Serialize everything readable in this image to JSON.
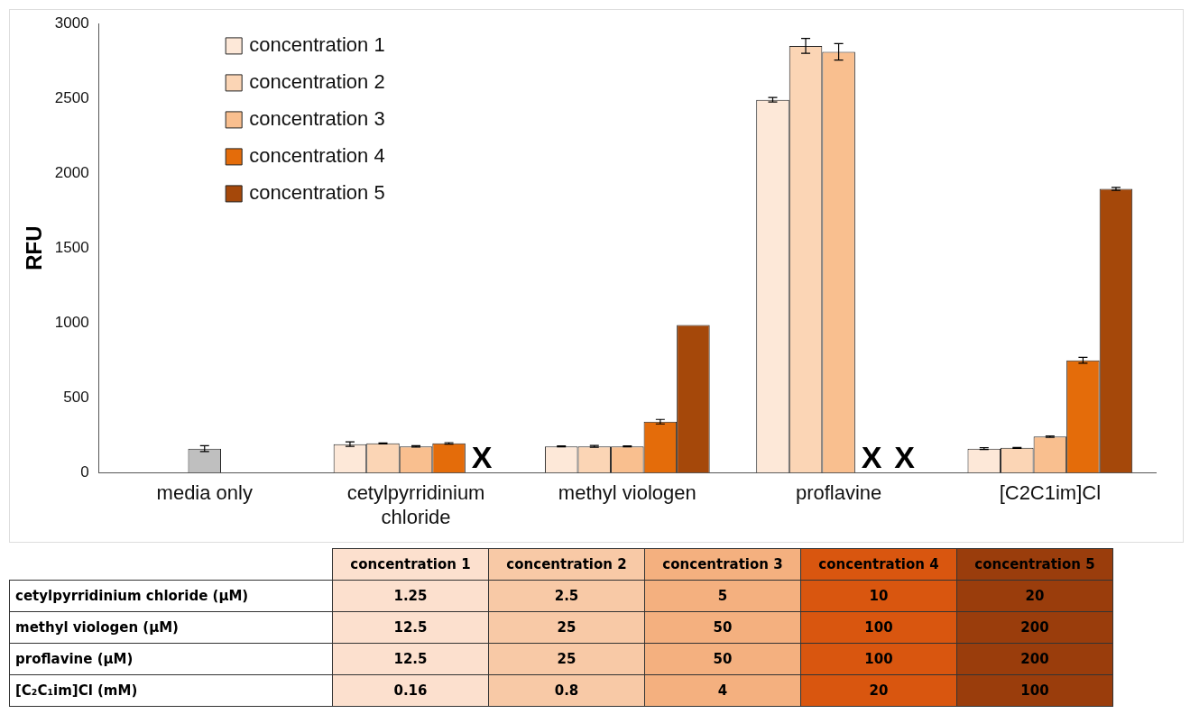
{
  "chart_data": [
    {
      "type": "bar",
      "ylabel": "RFU",
      "categories": [
        "media only",
        "cetylpyrridinium chloride",
        "methyl viologen",
        "proflavine",
        "[C2C1im]Cl"
      ],
      "series": [
        {
          "name": "concentration 1",
          "color": "#fde8d8",
          "values": [
            null,
            190,
            175,
            2490,
            160
          ],
          "errors": [
            null,
            15,
            3,
            15,
            6
          ]
        },
        {
          "name": "concentration 2",
          "color": "#fbd5b5",
          "values": [
            null,
            195,
            175,
            2850,
            165
          ],
          "errors": [
            null,
            3,
            6,
            50,
            3
          ]
        },
        {
          "name": "concentration 3",
          "color": "#f9bf8f",
          "colors": [
            "#bfbfbf",
            "#f9bf8f",
            "#f9bf8f",
            "#f9bf8f",
            "#f9bf8f"
          ],
          "values": [
            160,
            175,
            175,
            2810,
            240
          ],
          "errors": [
            20,
            5,
            3,
            55,
            5
          ]
        },
        {
          "name": "concentration 4",
          "color": "#e46c0a",
          "values": [
            null,
            195,
            340,
            null,
            750
          ],
          "errors": [
            null,
            5,
            15,
            null,
            20
          ],
          "value_labels": [
            null,
            null,
            null,
            "X",
            null
          ]
        },
        {
          "name": "concentration 5",
          "color": "#a5480a",
          "values": [
            null,
            null,
            985,
            null,
            1895
          ],
          "errors": [
            null,
            null,
            null,
            null,
            10
          ],
          "value_labels": [
            null,
            "X",
            null,
            "X",
            null
          ]
        }
      ],
      "ylim": [
        0,
        3000
      ],
      "yticks": [
        0,
        500,
        1000,
        1500,
        2000,
        2500,
        3000
      ],
      "grid": false,
      "legend": "top left"
    },
    {
      "type": "other",
      "categories": [
        "concentration 1",
        "concentration 2",
        "concentration 3",
        "concentration 4",
        "concentration 5"
      ],
      "colors": [
        "#fce0ce",
        "#f8c9a6",
        "#f4b07f",
        "#d9560f",
        "#9a3d0c"
      ],
      "y_categories": [
        "cetylpyrridinium chloride (µM)",
        "methyl viologen (µM)",
        "proflavine (µM)",
        "[C₂C₁im]Cl (mM)"
      ],
      "cell_labels": [
        [
          "1.25",
          "2.5",
          "5",
          "10",
          "20"
        ],
        [
          "12.5",
          "25",
          "50",
          "100",
          "200"
        ],
        [
          "12.5",
          "25",
          "50",
          "100",
          "200"
        ],
        [
          "0.16",
          "0.8",
          "4",
          "20",
          "100"
        ]
      ]
    }
  ]
}
